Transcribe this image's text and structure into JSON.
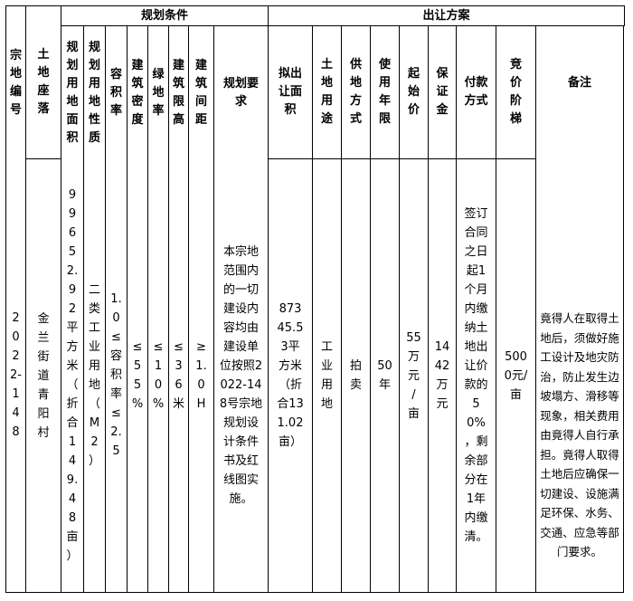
{
  "headers": {
    "group_planning": "规划条件",
    "group_transfer": "出让方案",
    "parcel_no": "宗地编号",
    "location": "土地座落",
    "plan_area": "规划用地面积",
    "plan_nature": "规划用地性质",
    "plot_ratio": "容积率",
    "building_density": "建筑密度",
    "green_ratio": "绿地率",
    "height_limit": "建筑限高",
    "building_spacing": "建筑间距",
    "plan_requirements": "规划要求",
    "transfer_area": "拟出让面积",
    "land_use": "土地用途",
    "supply_method": "供地方式",
    "use_term": "使用年限",
    "starting_price": "起始价",
    "deposit": "保证金",
    "payment_method": "付款方式",
    "bid_increment": "竞价阶梯",
    "remarks": "备注"
  },
  "row": {
    "parcel_no": "2022-148",
    "location": "金兰街道青阳村",
    "plan_area": "99652.92平方米（折合149.48亩）",
    "plan_nature": "二类工业用地（M2）",
    "plot_ratio": "1.0≤容积率≤2.5",
    "building_density": "≤55%",
    "green_ratio": "≤10%",
    "height_limit": "≤36米",
    "building_spacing": "≥1.0H",
    "plan_requirements": "本宗地范围内的一切建设内容均由建设单位按照2022-148号宗地规划设计条件书及红线图实施。",
    "transfer_area": "87345.53平方米（折合131.02亩）",
    "land_use": "工业用地",
    "supply_method": "拍卖",
    "use_term": "50年",
    "starting_price": "55万元/亩",
    "deposit": "1442万元",
    "payment_method": "签订合同之日起1个月内缴纳土地出让价款的50%，剩余部分在1年内缴清。",
    "bid_increment": "5000元/亩",
    "remarks": "竟得人在取得土地后，须做好施工设计及地灾防治，防止发生边坡塌方、滑移等现象，相关费用由竟得人自行承担。竟得人取得土地后应确保一切建设、设施满足环保、水务、交通、应急等部门要求。"
  }
}
